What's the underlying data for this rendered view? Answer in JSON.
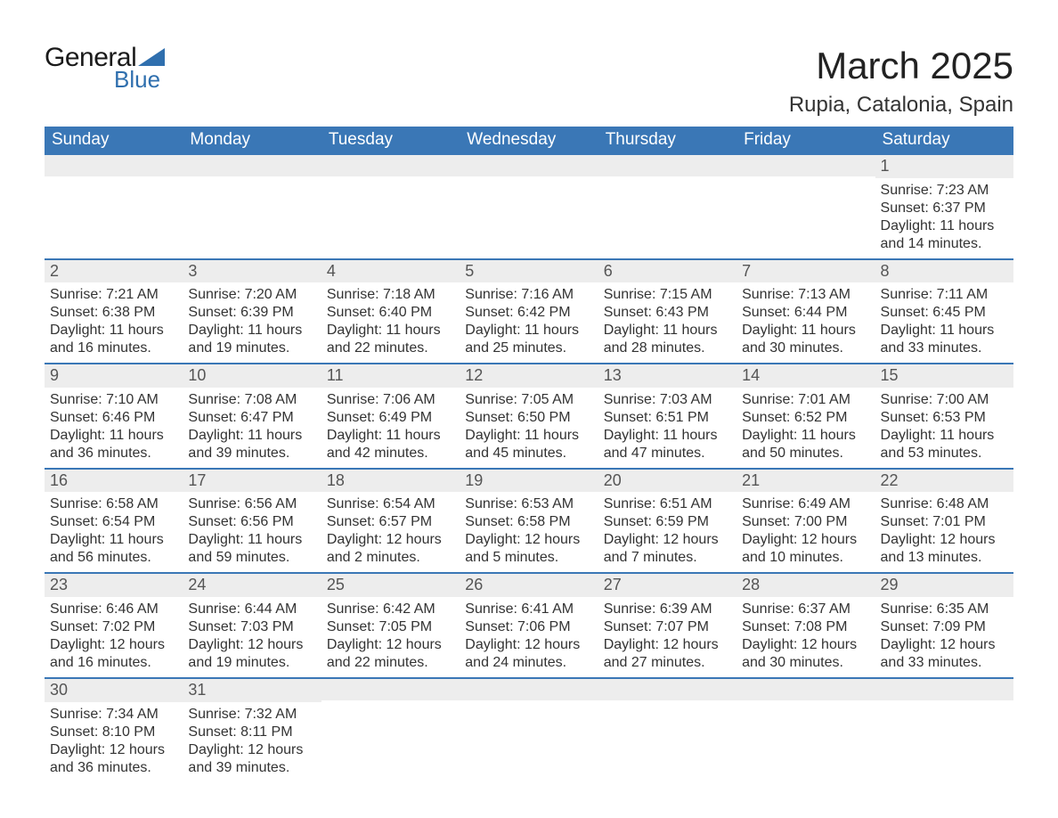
{
  "logo": {
    "text_general": "General",
    "text_blue": "Blue",
    "triangle_color": "#2f6fae"
  },
  "header": {
    "title": "March 2025",
    "subtitle": "Rupia, Catalonia, Spain"
  },
  "colors": {
    "header_bg": "#3a77b6",
    "header_text": "#ffffff",
    "daynum_bg": "#ededed",
    "daynum_text": "#555555",
    "row_divider": "#3a77b6",
    "body_text": "#333333",
    "page_bg": "#ffffff"
  },
  "fonts": {
    "title_size_pt": 32,
    "subtitle_size_pt": 18,
    "header_cell_size_pt": 14,
    "daynum_size_pt": 14,
    "body_size_pt": 12
  },
  "calendar": {
    "type": "table",
    "columns": [
      "Sunday",
      "Monday",
      "Tuesday",
      "Wednesday",
      "Thursday",
      "Friday",
      "Saturday"
    ],
    "weeks": [
      [
        {
          "blank": true
        },
        {
          "blank": true
        },
        {
          "blank": true
        },
        {
          "blank": true
        },
        {
          "blank": true
        },
        {
          "blank": true
        },
        {
          "day": "1",
          "sunrise": "Sunrise: 7:23 AM",
          "sunset": "Sunset: 6:37 PM",
          "daylight": "Daylight: 11 hours and 14 minutes."
        }
      ],
      [
        {
          "day": "2",
          "sunrise": "Sunrise: 7:21 AM",
          "sunset": "Sunset: 6:38 PM",
          "daylight": "Daylight: 11 hours and 16 minutes."
        },
        {
          "day": "3",
          "sunrise": "Sunrise: 7:20 AM",
          "sunset": "Sunset: 6:39 PM",
          "daylight": "Daylight: 11 hours and 19 minutes."
        },
        {
          "day": "4",
          "sunrise": "Sunrise: 7:18 AM",
          "sunset": "Sunset: 6:40 PM",
          "daylight": "Daylight: 11 hours and 22 minutes."
        },
        {
          "day": "5",
          "sunrise": "Sunrise: 7:16 AM",
          "sunset": "Sunset: 6:42 PM",
          "daylight": "Daylight: 11 hours and 25 minutes."
        },
        {
          "day": "6",
          "sunrise": "Sunrise: 7:15 AM",
          "sunset": "Sunset: 6:43 PM",
          "daylight": "Daylight: 11 hours and 28 minutes."
        },
        {
          "day": "7",
          "sunrise": "Sunrise: 7:13 AM",
          "sunset": "Sunset: 6:44 PM",
          "daylight": "Daylight: 11 hours and 30 minutes."
        },
        {
          "day": "8",
          "sunrise": "Sunrise: 7:11 AM",
          "sunset": "Sunset: 6:45 PM",
          "daylight": "Daylight: 11 hours and 33 minutes."
        }
      ],
      [
        {
          "day": "9",
          "sunrise": "Sunrise: 7:10 AM",
          "sunset": "Sunset: 6:46 PM",
          "daylight": "Daylight: 11 hours and 36 minutes."
        },
        {
          "day": "10",
          "sunrise": "Sunrise: 7:08 AM",
          "sunset": "Sunset: 6:47 PM",
          "daylight": "Daylight: 11 hours and 39 minutes."
        },
        {
          "day": "11",
          "sunrise": "Sunrise: 7:06 AM",
          "sunset": "Sunset: 6:49 PM",
          "daylight": "Daylight: 11 hours and 42 minutes."
        },
        {
          "day": "12",
          "sunrise": "Sunrise: 7:05 AM",
          "sunset": "Sunset: 6:50 PM",
          "daylight": "Daylight: 11 hours and 45 minutes."
        },
        {
          "day": "13",
          "sunrise": "Sunrise: 7:03 AM",
          "sunset": "Sunset: 6:51 PM",
          "daylight": "Daylight: 11 hours and 47 minutes."
        },
        {
          "day": "14",
          "sunrise": "Sunrise: 7:01 AM",
          "sunset": "Sunset: 6:52 PM",
          "daylight": "Daylight: 11 hours and 50 minutes."
        },
        {
          "day": "15",
          "sunrise": "Sunrise: 7:00 AM",
          "sunset": "Sunset: 6:53 PM",
          "daylight": "Daylight: 11 hours and 53 minutes."
        }
      ],
      [
        {
          "day": "16",
          "sunrise": "Sunrise: 6:58 AM",
          "sunset": "Sunset: 6:54 PM",
          "daylight": "Daylight: 11 hours and 56 minutes."
        },
        {
          "day": "17",
          "sunrise": "Sunrise: 6:56 AM",
          "sunset": "Sunset: 6:56 PM",
          "daylight": "Daylight: 11 hours and 59 minutes."
        },
        {
          "day": "18",
          "sunrise": "Sunrise: 6:54 AM",
          "sunset": "Sunset: 6:57 PM",
          "daylight": "Daylight: 12 hours and 2 minutes."
        },
        {
          "day": "19",
          "sunrise": "Sunrise: 6:53 AM",
          "sunset": "Sunset: 6:58 PM",
          "daylight": "Daylight: 12 hours and 5 minutes."
        },
        {
          "day": "20",
          "sunrise": "Sunrise: 6:51 AM",
          "sunset": "Sunset: 6:59 PM",
          "daylight": "Daylight: 12 hours and 7 minutes."
        },
        {
          "day": "21",
          "sunrise": "Sunrise: 6:49 AM",
          "sunset": "Sunset: 7:00 PM",
          "daylight": "Daylight: 12 hours and 10 minutes."
        },
        {
          "day": "22",
          "sunrise": "Sunrise: 6:48 AM",
          "sunset": "Sunset: 7:01 PM",
          "daylight": "Daylight: 12 hours and 13 minutes."
        }
      ],
      [
        {
          "day": "23",
          "sunrise": "Sunrise: 6:46 AM",
          "sunset": "Sunset: 7:02 PM",
          "daylight": "Daylight: 12 hours and 16 minutes."
        },
        {
          "day": "24",
          "sunrise": "Sunrise: 6:44 AM",
          "sunset": "Sunset: 7:03 PM",
          "daylight": "Daylight: 12 hours and 19 minutes."
        },
        {
          "day": "25",
          "sunrise": "Sunrise: 6:42 AM",
          "sunset": "Sunset: 7:05 PM",
          "daylight": "Daylight: 12 hours and 22 minutes."
        },
        {
          "day": "26",
          "sunrise": "Sunrise: 6:41 AM",
          "sunset": "Sunset: 7:06 PM",
          "daylight": "Daylight: 12 hours and 24 minutes."
        },
        {
          "day": "27",
          "sunrise": "Sunrise: 6:39 AM",
          "sunset": "Sunset: 7:07 PM",
          "daylight": "Daylight: 12 hours and 27 minutes."
        },
        {
          "day": "28",
          "sunrise": "Sunrise: 6:37 AM",
          "sunset": "Sunset: 7:08 PM",
          "daylight": "Daylight: 12 hours and 30 minutes."
        },
        {
          "day": "29",
          "sunrise": "Sunrise: 6:35 AM",
          "sunset": "Sunset: 7:09 PM",
          "daylight": "Daylight: 12 hours and 33 minutes."
        }
      ],
      [
        {
          "day": "30",
          "sunrise": "Sunrise: 7:34 AM",
          "sunset": "Sunset: 8:10 PM",
          "daylight": "Daylight: 12 hours and 36 minutes."
        },
        {
          "day": "31",
          "sunrise": "Sunrise: 7:32 AM",
          "sunset": "Sunset: 8:11 PM",
          "daylight": "Daylight: 12 hours and 39 minutes."
        },
        {
          "blank": true
        },
        {
          "blank": true
        },
        {
          "blank": true
        },
        {
          "blank": true
        },
        {
          "blank": true
        }
      ]
    ]
  }
}
